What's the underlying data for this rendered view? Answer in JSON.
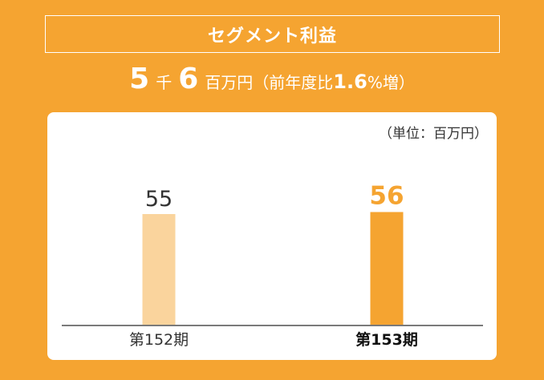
{
  "header": {
    "title": "セグメント利益",
    "value_num1": "5",
    "value_unit1": "千",
    "value_num2": "6",
    "value_unit2": "百万円",
    "yoy_prefix": "（前年度比",
    "yoy_value": "1.6",
    "yoy_suffix": "%増）"
  },
  "chart_data": {
    "type": "bar",
    "unit_label": "（単位：百万円）",
    "categories": [
      "第152期",
      "第153期"
    ],
    "values": [
      55,
      56
    ],
    "ylim": [
      0,
      100
    ],
    "grid": false,
    "colors": [
      "#FAD49D",
      "#F5A431"
    ],
    "highlight_index": 1
  }
}
